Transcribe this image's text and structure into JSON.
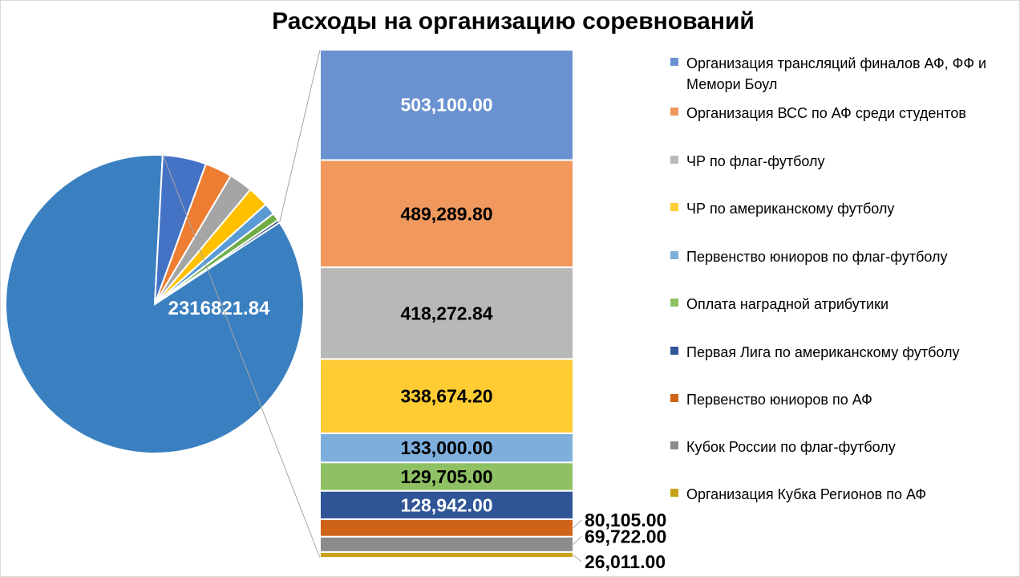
{
  "chart_data": {
    "type": "bar",
    "title": "Расходы на организацию соревнований",
    "pie": {
      "center_label": "2316821.84",
      "slices": [
        {
          "value": 2316821.84,
          "color": "#3a80c1"
        },
        {
          "value": 128942.0,
          "color": "#4472c4"
        },
        {
          "value": 80105.0,
          "color": "#ed7d31"
        },
        {
          "value": 69722.0,
          "color": "#a5a5a5"
        },
        {
          "value": 62000.0,
          "color": "#ffc000"
        },
        {
          "value": 35000.0,
          "color": "#5b9bd5"
        },
        {
          "value": 23000.0,
          "color": "#70ad47"
        },
        {
          "value": 8000.0,
          "color": "#264478"
        }
      ]
    },
    "series": [
      {
        "name": "Организация трансляций финалов АФ, ФФ и Мемори Боул",
        "value": 503100.0,
        "label": "503,100.00",
        "color": "#6a92d0",
        "label_color": "#ffffff"
      },
      {
        "name": "Организация ВСС по АФ среди студентов",
        "value": 489289.8,
        "label": "489,289.80",
        "color": "#f0985e",
        "label_color": "#000000"
      },
      {
        "name": "ЧР по флаг-футболу",
        "value": 418272.84,
        "label": "418,272.84",
        "color": "#b8b8b8",
        "label_color": "#000000"
      },
      {
        "name": "ЧР по американскому футболу",
        "value": 338674.2,
        "label": "338,674.20",
        "color": "#ffcc33",
        "label_color": "#000000"
      },
      {
        "name": "Первенство юниоров по флаг-футболу",
        "value": 133000.0,
        "label": "133,000.00",
        "color": "#7eaedc",
        "label_color": "#000000"
      },
      {
        "name": "Оплата наградной атрибутики",
        "value": 129705.0,
        "label": "129,705.00",
        "color": "#8fc164",
        "label_color": "#000000"
      },
      {
        "name": "Первая Лига по американскому футболу",
        "value": 128942.0,
        "label": "128,942.00",
        "color": "#2f5597",
        "label_color": "#ffffff"
      },
      {
        "name": "Первенство юниоров по АФ",
        "value": 80105.0,
        "label": "80,105.00",
        "color": "#d0631a",
        "label_color": "#000000"
      },
      {
        "name": "Кубок России по флаг-футболу",
        "value": 69722.0,
        "label": "69,722.00",
        "color": "#8c8c8c",
        "label_color": "#000000"
      },
      {
        "name": "Организация Кубка Регионов по АФ",
        "value": 26011.0,
        "label": "26,011.00",
        "color": "#c9a317",
        "label_color": "#000000"
      }
    ]
  }
}
